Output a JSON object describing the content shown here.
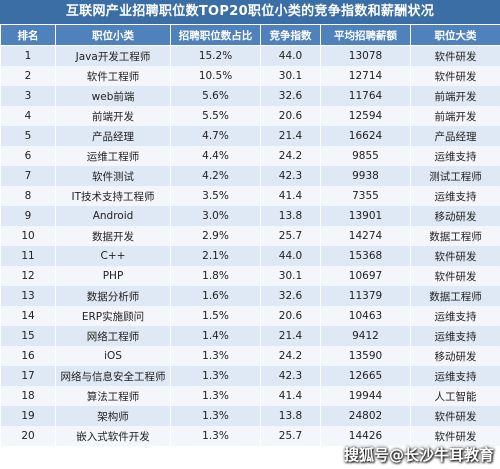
{
  "chart_data": {
    "type": "table",
    "title": "互联网产业招聘职位数TOP20职位小类的竞争指数和薪酬状况",
    "columns": [
      "排名",
      "职位小类",
      "招聘职位数占比",
      "竞争指数",
      "平均招聘薪额",
      "职位大类"
    ],
    "rows": [
      [
        "1",
        "Java开发工程师",
        "15.2%",
        "44.0",
        "13078",
        "软件研发"
      ],
      [
        "2",
        "软件工程师",
        "10.5%",
        "30.1",
        "12714",
        "软件研发"
      ],
      [
        "3",
        "web前端",
        "5.6%",
        "32.6",
        "11764",
        "前端开发"
      ],
      [
        "4",
        "前端开发",
        "5.5%",
        "20.6",
        "12594",
        "前端开发"
      ],
      [
        "5",
        "产品经理",
        "4.7%",
        "21.4",
        "16624",
        "产品经理"
      ],
      [
        "6",
        "运维工程师",
        "4.4%",
        "24.2",
        "9855",
        "运维支持"
      ],
      [
        "7",
        "软件测试",
        "4.2%",
        "42.3",
        "9938",
        "测试工程师"
      ],
      [
        "8",
        "IT技术支持工程师",
        "3.5%",
        "41.4",
        "7355",
        "运维支持"
      ],
      [
        "9",
        "Android",
        "3.0%",
        "13.8",
        "13901",
        "移动研发"
      ],
      [
        "10",
        "数据开发",
        "2.9%",
        "25.7",
        "14274",
        "数据工程师"
      ],
      [
        "11",
        "C++",
        "2.1%",
        "44.0",
        "15368",
        "软件研发"
      ],
      [
        "12",
        "PHP",
        "1.8%",
        "30.1",
        "10697",
        "软件研发"
      ],
      [
        "13",
        "数据分析师",
        "1.6%",
        "32.6",
        "11379",
        "数据工程师"
      ],
      [
        "14",
        "ERP实施顾问",
        "1.5%",
        "20.6",
        "10463",
        "运维支持"
      ],
      [
        "15",
        "网络工程师",
        "1.4%",
        "21.4",
        "9412",
        "运维支持"
      ],
      [
        "16",
        "iOS",
        "1.3%",
        "24.2",
        "13590",
        "移动研发"
      ],
      [
        "17",
        "网络与信息安全工程师",
        "1.3%",
        "42.3",
        "12665",
        "运维支持"
      ],
      [
        "18",
        "算法工程师",
        "1.3%",
        "41.4",
        "19944",
        "人工智能"
      ],
      [
        "19",
        "架构师",
        "1.3%",
        "13.8",
        "24802",
        "软件研发"
      ],
      [
        "20",
        "嵌入式软件开发",
        "1.3%",
        "25.7",
        "14426",
        "软件研发"
      ]
    ]
  },
  "watermark": "搜狐号@长沙牛耳教育"
}
